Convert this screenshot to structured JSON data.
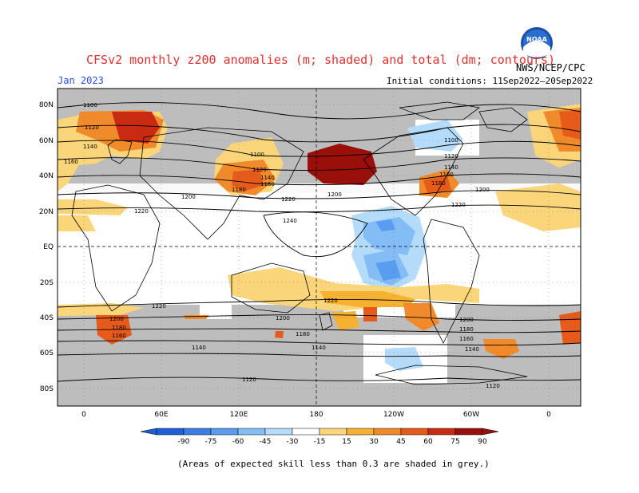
{
  "header": {
    "title": "CFSv2 monthly z200 anomalies (m; shaded) and total (dm; contours)",
    "month": "Jan 2023",
    "agency": "NWS/NCEP/CPC",
    "initial_conditions": "Initial conditions: 11Sep2022–20Sep2022",
    "logo_text": "NOAA"
  },
  "axes": {
    "lat_labels": [
      "80N",
      "60N",
      "40N",
      "20N",
      "EQ",
      "20S",
      "40S",
      "60S",
      "80S"
    ],
    "lon_labels": [
      "0",
      "60E",
      "120E",
      "180",
      "120W",
      "60W",
      "0"
    ]
  },
  "contour_labels": [
    "1100",
    "1120",
    "1140",
    "1160",
    "1100",
    "1120",
    "1140",
    "1160",
    "1180",
    "1200",
    "1220",
    "1220",
    "1240",
    "1200",
    "1100",
    "1120",
    "1140",
    "1160",
    "1180",
    "1200",
    "1220",
    "1220",
    "1200",
    "1180",
    "1160",
    "1140",
    "1200",
    "1180",
    "1140",
    "1120",
    "1220",
    "1200",
    "1180",
    "1160",
    "1140",
    "1120"
  ],
  "colorbar": {
    "labels": [
      "-90",
      "-75",
      "-60",
      "-45",
      "-30",
      "-15",
      "15",
      "30",
      "45",
      "60",
      "75",
      "90"
    ],
    "colors": [
      "#1e5fd8",
      "#3a7ee6",
      "#5a9cf0",
      "#84bcf6",
      "#b4dcfa",
      "#ffffff",
      "#fbd57a",
      "#f5b12f",
      "#f08a2a",
      "#e65a1a",
      "#c82a12",
      "#9a0f0a"
    ]
  },
  "footer": "(Areas of expected skill less than 0.3 are shaded in grey.)"
}
